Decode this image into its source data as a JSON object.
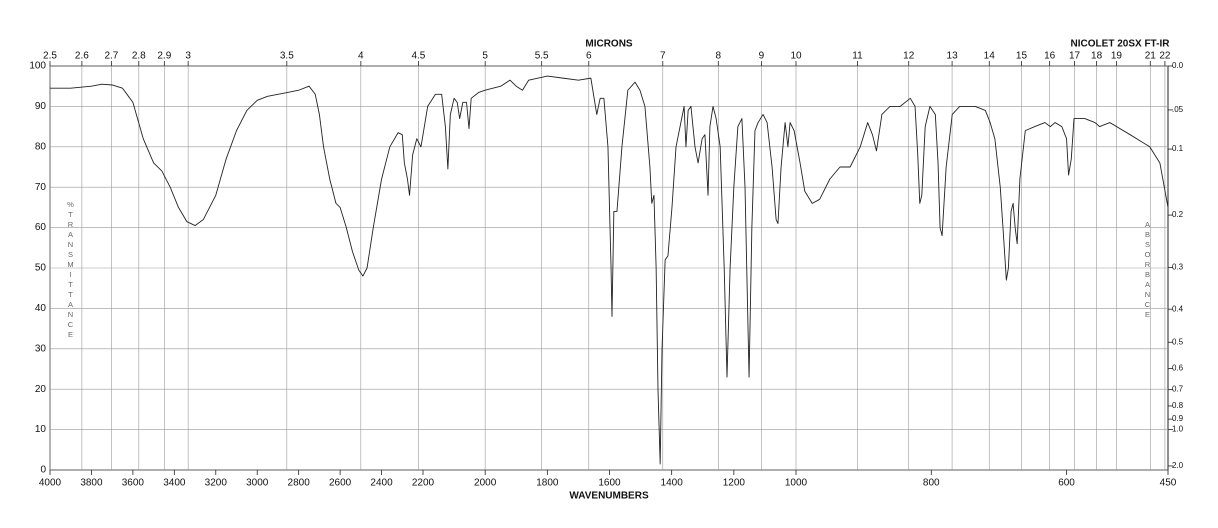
{
  "chart_data": {
    "type": "line",
    "title": "NICOLET 20SX FT-IR",
    "x2label": "MICRONS",
    "xlabel": "WAVENUMBERS",
    "ylabel": "%TRANSMITTANCE",
    "y2label": "ABSORBANCE",
    "color": "#222222",
    "grid": true,
    "xlim": [
      4000,
      450
    ],
    "xticks": [
      4000,
      3800,
      3600,
      3400,
      3200,
      3000,
      2800,
      2600,
      2400,
      2200,
      2000,
      1800,
      1600,
      1400,
      1200,
      1000,
      800,
      600,
      450
    ],
    "x2ticks": [
      2.5,
      2.6,
      2.7,
      2.8,
      2.9,
      3,
      3.5,
      4,
      4.5,
      5,
      5.5,
      6,
      7,
      8,
      9,
      10,
      11,
      12,
      13,
      14,
      15,
      16,
      17,
      18,
      19,
      21,
      22
    ],
    "ylim": [
      0,
      100
    ],
    "yticks": [
      0,
      10,
      20,
      30,
      40,
      50,
      60,
      70,
      80,
      90,
      100
    ],
    "y2ticks": [
      {
        "value": 0,
        "label": "0.0"
      },
      {
        "value": 0.05,
        "label": ".05"
      },
      0.1,
      0.2,
      0.3,
      0.4,
      0.5,
      0.6,
      0.7,
      0.8,
      0.9,
      {
        "value": 1,
        "label": "1.0"
      },
      {
        "value": 2,
        "label": "2.0"
      }
    ],
    "x": [
      4000,
      3900,
      3800,
      3750,
      3700,
      3650,
      3600,
      3550,
      3500,
      3460,
      3420,
      3380,
      3340,
      3300,
      3260,
      3200,
      3150,
      3100,
      3050,
      3000,
      2950,
      2900,
      2850,
      2800,
      2750,
      2720,
      2700,
      2680,
      2650,
      2620,
      2600,
      2570,
      2540,
      2510,
      2490,
      2470,
      2440,
      2400,
      2360,
      2320,
      2300,
      2290,
      2275,
      2265,
      2250,
      2230,
      2210,
      2200,
      2185,
      2160,
      2140,
      2128,
      2120,
      2112,
      2100,
      2090,
      2082,
      2072,
      2060,
      2052,
      2045,
      2020,
      2000,
      1950,
      1920,
      1900,
      1880,
      1860,
      1800,
      1750,
      1700,
      1660,
      1641,
      1630,
      1618,
      1605,
      1595,
      1592,
      1586,
      1576,
      1560,
      1541,
      1518,
      1502,
      1486,
      1470,
      1464,
      1457,
      1450,
      1444,
      1437,
      1431,
      1421,
      1412,
      1399,
      1386,
      1373,
      1360,
      1354,
      1347,
      1338,
      1325,
      1315,
      1302,
      1293,
      1283,
      1277,
      1267,
      1257,
      1244,
      1231,
      1222,
      1212,
      1200,
      1187,
      1174,
      1164,
      1151,
      1142,
      1132,
      1122,
      1106,
      1093,
      1077,
      1064,
      1058,
      1048,
      1035,
      1026,
      1019,
      1006,
      994,
      987,
      976,
      965,
      950,
      935,
      920,
      905,
      894,
      887,
      881,
      873,
      861,
      846,
      831,
      824,
      820,
      817,
      814,
      809,
      802,
      794,
      790,
      787,
      784,
      778,
      769,
      758,
      735,
      720,
      713,
      706,
      698,
      694,
      689,
      686,
      682,
      679,
      676,
      673,
      669,
      661,
      647,
      632,
      624,
      617,
      607,
      600,
      597,
      593,
      589,
      573,
      558,
      551,
      536,
      506,
      477,
      462,
      450
    ],
    "values": [
      94.5,
      94.5,
      95,
      95.5,
      95.3,
      94.5,
      91,
      82,
      76,
      74,
      70,
      65,
      61.5,
      60.5,
      62,
      68,
      77,
      84,
      89,
      91.5,
      92.5,
      93,
      93.5,
      94,
      95,
      93,
      88,
      80,
      72,
      66,
      65,
      60,
      54,
      49.5,
      48,
      50,
      60,
      72,
      80,
      83.5,
      83,
      76,
      72,
      68,
      78,
      82,
      80,
      83,
      90,
      93,
      93,
      85,
      74.5,
      88,
      92,
      91,
      87,
      91,
      91,
      84.5,
      92,
      93.5,
      94,
      95,
      96.5,
      95,
      94,
      96.5,
      97.5,
      97,
      96.5,
      97,
      88,
      92,
      92,
      80,
      50,
      38,
      64,
      64,
      80,
      94,
      96,
      94,
      90,
      75,
      66,
      68,
      50,
      20,
      1.5,
      30,
      52,
      53,
      65,
      80,
      85,
      90,
      80,
      89,
      90,
      80,
      76,
      82,
      83,
      68,
      85,
      90,
      87,
      80,
      50,
      23,
      50,
      70,
      85,
      87,
      70,
      23,
      60,
      84,
      86,
      88,
      86,
      75,
      62,
      61,
      75,
      86,
      80,
      86,
      84,
      76,
      69,
      66,
      67,
      72,
      75,
      75,
      80,
      86,
      83,
      79,
      88,
      90,
      90,
      92,
      90,
      78,
      66,
      68,
      85,
      90,
      88,
      76,
      60,
      58,
      75,
      88,
      90,
      90,
      89,
      86,
      82,
      70,
      60,
      47,
      50,
      64,
      66,
      60,
      56,
      72,
      84,
      85,
      86,
      85,
      86,
      85,
      82,
      73,
      77,
      87,
      87,
      86,
      85,
      86,
      83,
      80,
      76,
      65
    ]
  }
}
